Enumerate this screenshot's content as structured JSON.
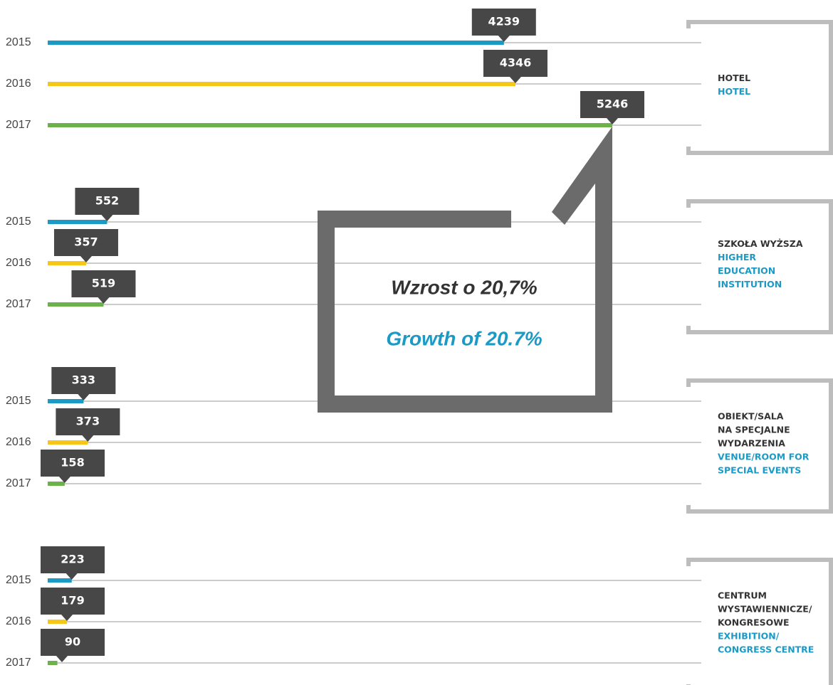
{
  "chart_data": {
    "type": "bar",
    "orientation": "horizontal",
    "categories": [
      {
        "pl": [
          "HOTEL"
        ],
        "en": [
          "HOTEL"
        ]
      },
      {
        "pl": [
          "SZKOŁA WYŻSZA"
        ],
        "en": [
          "HIGHER",
          "EDUCATION",
          "INSTITUTION"
        ]
      },
      {
        "pl": [
          "OBIEKT/SALA",
          "NA SPECJALNE",
          "WYDARZENIA"
        ],
        "en": [
          "VENUE/ROOM FOR",
          "SPECIAL EVENTS"
        ]
      },
      {
        "pl": [
          "CENTRUM",
          "WYSTAWIENNICZE/",
          "KONGRESOWE"
        ],
        "en": [
          "EXHIBITION/",
          "CONGRESS CENTRE"
        ]
      }
    ],
    "series": [
      {
        "name": "2015",
        "color": "#1b9ac6",
        "values": [
          4239,
          552,
          333,
          223
        ]
      },
      {
        "name": "2016",
        "color": "#f6c619",
        "values": [
          4346,
          357,
          373,
          179
        ]
      },
      {
        "name": "2017",
        "color": "#6cb14a",
        "values": [
          5246,
          519,
          158,
          90
        ]
      }
    ],
    "annotation": {
      "pl": "Wzrost o 20,7%",
      "en": "Growth of 20.7%"
    }
  }
}
